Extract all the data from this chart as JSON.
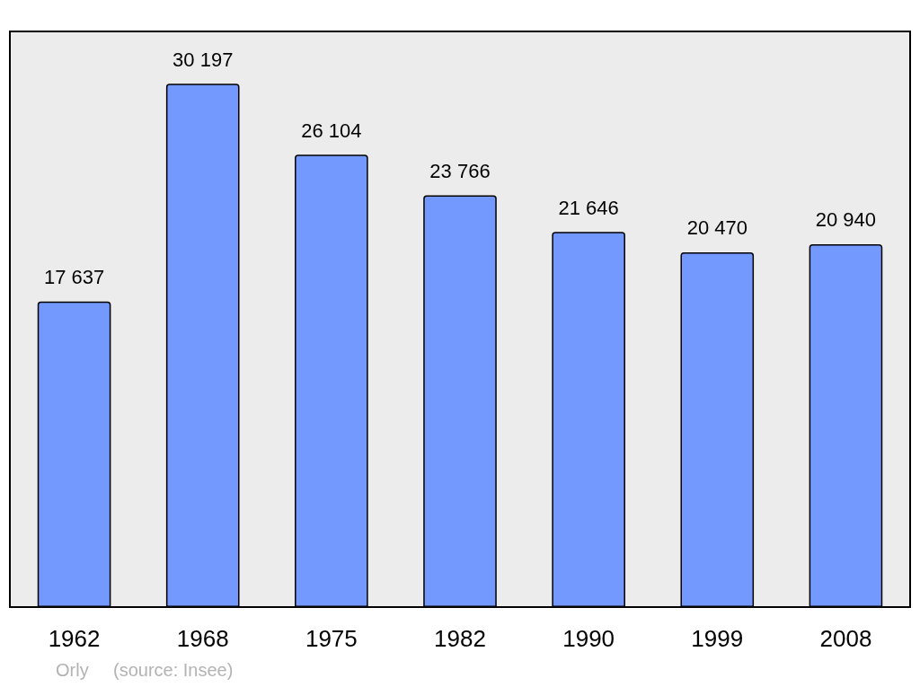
{
  "chart_data": {
    "type": "bar",
    "categories": [
      "1962",
      "1968",
      "1975",
      "1982",
      "1990",
      "1999",
      "2008"
    ],
    "values": [
      17637,
      30197,
      26104,
      23766,
      21646,
      20470,
      20940
    ],
    "value_labels": [
      "17 637",
      "30 197",
      "26 104",
      "23 766",
      "21 646",
      "20 470",
      "20 940"
    ],
    "color": "#7399ff",
    "annotations": [
      "Orly",
      "(source: Insee)"
    ]
  }
}
